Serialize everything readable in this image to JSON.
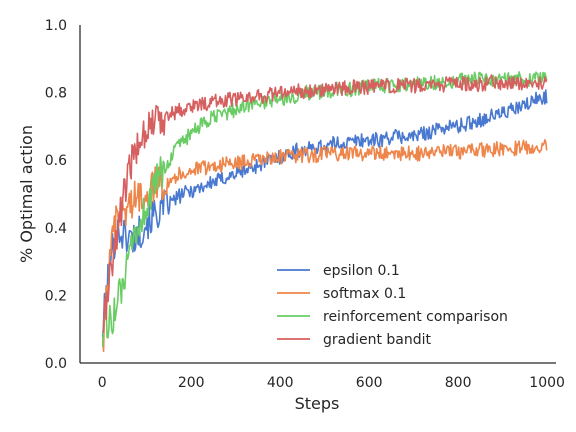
{
  "chart_data": {
    "type": "line",
    "title": "",
    "xlabel": "Steps",
    "ylabel": "% Optimal action",
    "xlim": [
      -50,
      1020
    ],
    "ylim": [
      0.0,
      1.0
    ],
    "xticks": [
      0,
      200,
      400,
      600,
      800,
      1000
    ],
    "yticks": [
      0.0,
      0.2,
      0.4,
      0.6,
      0.8,
      1.0
    ],
    "grid": false,
    "legend_position": "lower-right",
    "series": [
      {
        "name": "epsilon 0.1",
        "color": "#4878d0",
        "x": [
          1,
          10,
          20,
          30,
          40,
          50,
          60,
          70,
          80,
          90,
          100,
          120,
          140,
          160,
          180,
          200,
          220,
          240,
          260,
          280,
          300,
          320,
          340,
          360,
          380,
          400,
          420,
          440,
          460,
          480,
          500,
          525,
          550,
          575,
          600,
          625,
          650,
          675,
          700,
          725,
          750,
          775,
          800,
          825,
          850,
          875,
          900,
          925,
          950,
          975,
          1000
        ],
        "y": [
          0.1,
          0.22,
          0.32,
          0.38,
          0.39,
          0.38,
          0.37,
          0.37,
          0.38,
          0.4,
          0.42,
          0.44,
          0.46,
          0.48,
          0.5,
          0.51,
          0.52,
          0.53,
          0.54,
          0.55,
          0.56,
          0.57,
          0.58,
          0.59,
          0.6,
          0.61,
          0.62,
          0.63,
          0.63,
          0.64,
          0.64,
          0.65,
          0.65,
          0.66,
          0.66,
          0.66,
          0.67,
          0.67,
          0.67,
          0.68,
          0.69,
          0.7,
          0.7,
          0.71,
          0.72,
          0.73,
          0.74,
          0.75,
          0.76,
          0.78,
          0.79
        ]
      },
      {
        "name": "softmax 0.1",
        "color": "#ee854a",
        "x": [
          1,
          10,
          20,
          30,
          40,
          50,
          60,
          70,
          80,
          90,
          100,
          120,
          140,
          160,
          180,
          200,
          220,
          240,
          260,
          280,
          300,
          320,
          340,
          360,
          380,
          400,
          420,
          440,
          460,
          480,
          500,
          525,
          550,
          575,
          600,
          625,
          650,
          675,
          700,
          725,
          750,
          775,
          800,
          825,
          850,
          875,
          900,
          925,
          950,
          975,
          1000
        ],
        "y": [
          0.05,
          0.2,
          0.33,
          0.41,
          0.44,
          0.45,
          0.47,
          0.48,
          0.49,
          0.5,
          0.51,
          0.53,
          0.54,
          0.55,
          0.56,
          0.57,
          0.575,
          0.58,
          0.585,
          0.59,
          0.59,
          0.595,
          0.6,
          0.6,
          0.605,
          0.61,
          0.61,
          0.615,
          0.615,
          0.615,
          0.62,
          0.62,
          0.62,
          0.62,
          0.62,
          0.62,
          0.62,
          0.62,
          0.62,
          0.62,
          0.625,
          0.625,
          0.625,
          0.63,
          0.63,
          0.63,
          0.635,
          0.635,
          0.64,
          0.64,
          0.64
        ]
      },
      {
        "name": "reinforcement comparison",
        "color": "#6acc64",
        "x": [
          1,
          10,
          20,
          30,
          40,
          50,
          60,
          70,
          80,
          90,
          100,
          120,
          140,
          160,
          180,
          200,
          220,
          240,
          260,
          280,
          300,
          320,
          340,
          360,
          380,
          400,
          420,
          440,
          460,
          480,
          500,
          525,
          550,
          575,
          600,
          625,
          650,
          675,
          700,
          725,
          750,
          775,
          800,
          825,
          850,
          875,
          900,
          925,
          950,
          975,
          1000
        ],
        "y": [
          0.1,
          0.11,
          0.13,
          0.16,
          0.2,
          0.25,
          0.3,
          0.35,
          0.39,
          0.43,
          0.47,
          0.53,
          0.58,
          0.62,
          0.65,
          0.68,
          0.7,
          0.72,
          0.73,
          0.74,
          0.75,
          0.76,
          0.77,
          0.77,
          0.78,
          0.78,
          0.79,
          0.79,
          0.8,
          0.8,
          0.8,
          0.81,
          0.81,
          0.81,
          0.82,
          0.82,
          0.82,
          0.82,
          0.83,
          0.83,
          0.83,
          0.83,
          0.84,
          0.84,
          0.84,
          0.84,
          0.84,
          0.84,
          0.84,
          0.84,
          0.84
        ]
      },
      {
        "name": "gradient bandit",
        "color": "#d65f5f",
        "x": [
          1,
          10,
          20,
          30,
          40,
          50,
          60,
          70,
          80,
          90,
          100,
          120,
          140,
          160,
          180,
          200,
          220,
          240,
          260,
          280,
          300,
          320,
          340,
          360,
          380,
          400,
          420,
          440,
          460,
          480,
          500,
          525,
          550,
          575,
          600,
          625,
          650,
          675,
          700,
          725,
          750,
          775,
          800,
          825,
          850,
          875,
          900,
          925,
          950,
          975,
          1000
        ],
        "y": [
          0.1,
          0.18,
          0.28,
          0.36,
          0.44,
          0.5,
          0.56,
          0.61,
          0.65,
          0.68,
          0.7,
          0.72,
          0.73,
          0.74,
          0.75,
          0.76,
          0.765,
          0.77,
          0.775,
          0.78,
          0.78,
          0.785,
          0.79,
          0.79,
          0.795,
          0.8,
          0.8,
          0.805,
          0.805,
          0.81,
          0.81,
          0.81,
          0.815,
          0.815,
          0.815,
          0.82,
          0.82,
          0.82,
          0.82,
          0.82,
          0.82,
          0.825,
          0.825,
          0.825,
          0.825,
          0.83,
          0.83,
          0.83,
          0.83,
          0.83,
          0.83
        ]
      }
    ]
  }
}
